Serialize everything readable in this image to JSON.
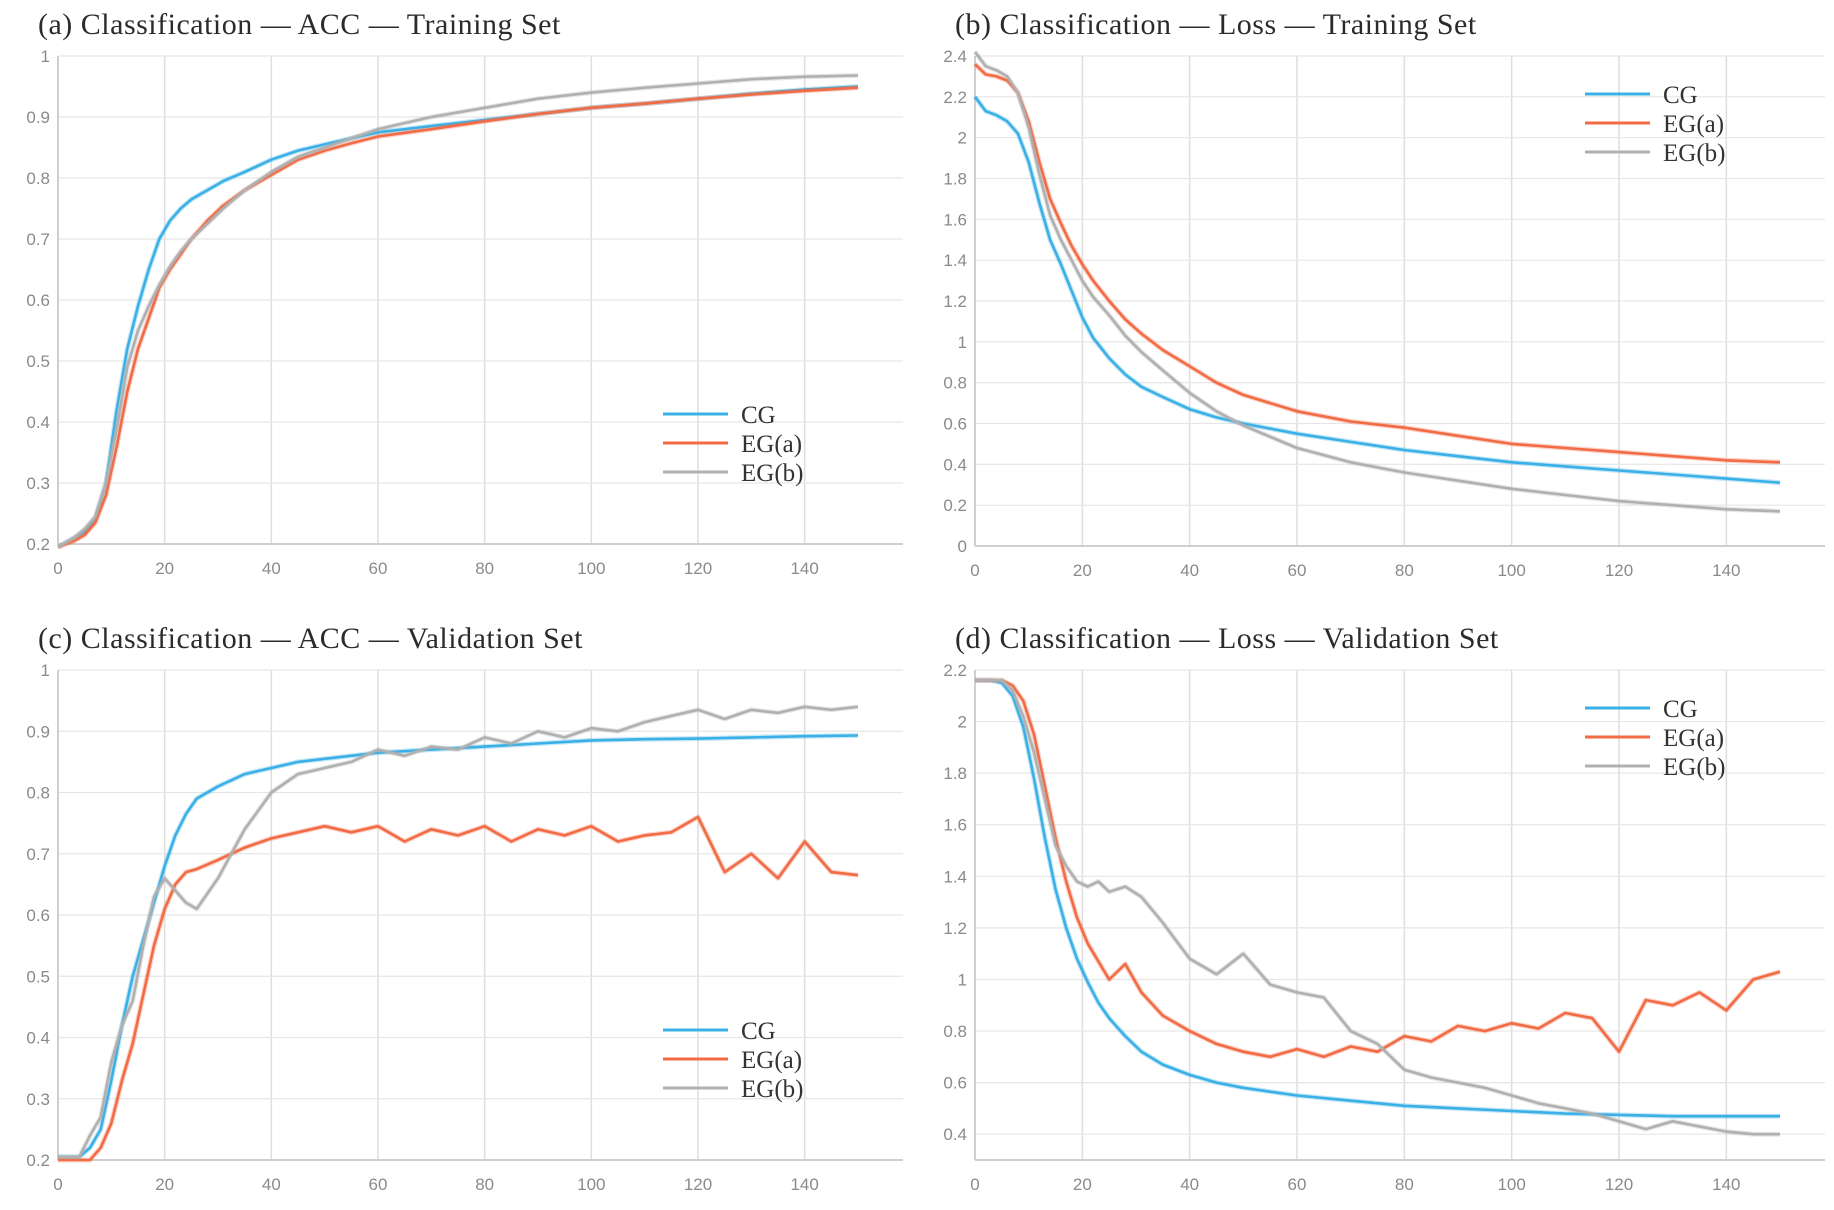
{
  "chart_data": [
    {
      "id": "a",
      "type": "line",
      "title": "(a)  Classification — ACC — Training Set",
      "xlim": [
        0,
        150
      ],
      "ylim": [
        0.2,
        1.0
      ],
      "xticks": [
        0,
        20,
        40,
        60,
        80,
        100,
        120,
        140
      ],
      "yticks": [
        0.2,
        0.3,
        0.4,
        0.5,
        0.6,
        0.7,
        0.8,
        0.9,
        1
      ],
      "grid": true,
      "legend_position": "bottom-right",
      "series": [
        {
          "name": "CG",
          "color": "#3ab0e6",
          "x": [
            0,
            3,
            5,
            7,
            9,
            11,
            13,
            15,
            17,
            19,
            21,
            23,
            25,
            28,
            31,
            35,
            40,
            45,
            50,
            55,
            60,
            70,
            80,
            90,
            100,
            110,
            120,
            130,
            140,
            150
          ],
          "y": [
            0.195,
            0.21,
            0.22,
            0.24,
            0.3,
            0.42,
            0.52,
            0.59,
            0.65,
            0.7,
            0.73,
            0.75,
            0.765,
            0.78,
            0.795,
            0.81,
            0.83,
            0.845,
            0.855,
            0.865,
            0.875,
            0.885,
            0.895,
            0.905,
            0.915,
            0.922,
            0.93,
            0.938,
            0.945,
            0.95
          ]
        },
        {
          "name": "EG(a)",
          "color": "#f26b45",
          "x": [
            0,
            3,
            5,
            7,
            9,
            11,
            13,
            15,
            17,
            19,
            21,
            23,
            25,
            28,
            31,
            35,
            40,
            45,
            50,
            55,
            60,
            70,
            80,
            90,
            100,
            110,
            120,
            130,
            140,
            150
          ],
          "y": [
            0.195,
            0.205,
            0.215,
            0.235,
            0.28,
            0.36,
            0.45,
            0.52,
            0.57,
            0.62,
            0.65,
            0.675,
            0.7,
            0.73,
            0.755,
            0.78,
            0.805,
            0.83,
            0.845,
            0.857,
            0.868,
            0.88,
            0.893,
            0.905,
            0.915,
            0.922,
            0.93,
            0.937,
            0.943,
            0.948
          ]
        },
        {
          "name": "EG(b)",
          "color": "#b0b0b0",
          "x": [
            0,
            3,
            5,
            7,
            9,
            11,
            13,
            15,
            17,
            19,
            21,
            23,
            25,
            28,
            31,
            35,
            40,
            45,
            50,
            55,
            60,
            70,
            80,
            90,
            100,
            110,
            120,
            130,
            140,
            150
          ],
          "y": [
            0.195,
            0.21,
            0.225,
            0.245,
            0.3,
            0.39,
            0.49,
            0.55,
            0.59,
            0.625,
            0.655,
            0.68,
            0.7,
            0.725,
            0.75,
            0.78,
            0.81,
            0.835,
            0.85,
            0.865,
            0.88,
            0.9,
            0.915,
            0.93,
            0.94,
            0.948,
            0.955,
            0.962,
            0.966,
            0.968
          ]
        }
      ]
    },
    {
      "id": "b",
      "type": "line",
      "title": "(b)  Classification — Loss — Training Set",
      "xlim": [
        0,
        150
      ],
      "ylim": [
        0,
        2.4
      ],
      "xticks": [
        0,
        20,
        40,
        60,
        80,
        100,
        120,
        140
      ],
      "yticks": [
        0,
        0.2,
        0.4,
        0.6,
        0.8,
        1,
        1.2,
        1.4,
        1.6,
        1.8,
        2,
        2.2,
        2.4
      ],
      "grid": true,
      "legend_position": "top-right",
      "series": [
        {
          "name": "CG",
          "color": "#3ab0e6",
          "x": [
            0,
            2,
            4,
            6,
            8,
            10,
            12,
            14,
            16,
            18,
            20,
            22,
            25,
            28,
            31,
            35,
            40,
            45,
            50,
            60,
            70,
            80,
            90,
            100,
            110,
            120,
            130,
            140,
            150
          ],
          "y": [
            2.2,
            2.13,
            2.11,
            2.08,
            2.02,
            1.88,
            1.68,
            1.5,
            1.38,
            1.25,
            1.12,
            1.02,
            0.92,
            0.84,
            0.78,
            0.73,
            0.67,
            0.63,
            0.6,
            0.55,
            0.51,
            0.47,
            0.44,
            0.41,
            0.39,
            0.37,
            0.35,
            0.33,
            0.31
          ]
        },
        {
          "name": "EG(a)",
          "color": "#f26b45",
          "x": [
            0,
            2,
            4,
            6,
            8,
            10,
            12,
            14,
            16,
            18,
            20,
            22,
            25,
            28,
            31,
            35,
            40,
            45,
            50,
            60,
            70,
            80,
            90,
            100,
            110,
            120,
            130,
            140,
            150
          ],
          "y": [
            2.36,
            2.31,
            2.3,
            2.28,
            2.22,
            2.08,
            1.88,
            1.7,
            1.58,
            1.47,
            1.38,
            1.3,
            1.2,
            1.11,
            1.04,
            0.96,
            0.88,
            0.8,
            0.74,
            0.66,
            0.61,
            0.58,
            0.54,
            0.5,
            0.48,
            0.46,
            0.44,
            0.42,
            0.41
          ]
        },
        {
          "name": "EG(b)",
          "color": "#b0b0b0",
          "x": [
            0,
            2,
            4,
            6,
            8,
            10,
            12,
            14,
            16,
            18,
            20,
            22,
            25,
            28,
            31,
            35,
            40,
            45,
            50,
            60,
            70,
            80,
            90,
            100,
            110,
            120,
            130,
            140,
            150
          ],
          "y": [
            2.42,
            2.35,
            2.33,
            2.3,
            2.22,
            2.05,
            1.82,
            1.62,
            1.5,
            1.4,
            1.3,
            1.22,
            1.13,
            1.03,
            0.95,
            0.86,
            0.75,
            0.66,
            0.59,
            0.48,
            0.41,
            0.36,
            0.32,
            0.28,
            0.25,
            0.22,
            0.2,
            0.18,
            0.17
          ]
        }
      ]
    },
    {
      "id": "c",
      "type": "line",
      "title": "(c)  Classification — ACC — Validation Set",
      "xlim": [
        0,
        150
      ],
      "ylim": [
        0.2,
        1.0
      ],
      "xticks": [
        0,
        20,
        40,
        60,
        80,
        100,
        120,
        140
      ],
      "yticks": [
        0.2,
        0.3,
        0.4,
        0.5,
        0.6,
        0.7,
        0.8,
        0.9,
        1
      ],
      "grid": true,
      "legend_position": "bottom-right",
      "series": [
        {
          "name": "CG",
          "color": "#3ab0e6",
          "x": [
            0,
            4,
            6,
            8,
            10,
            12,
            14,
            16,
            18,
            20,
            22,
            24,
            26,
            30,
            35,
            40,
            45,
            50,
            60,
            70,
            80,
            90,
            100,
            110,
            120,
            130,
            140,
            150
          ],
          "y": [
            0.205,
            0.205,
            0.22,
            0.25,
            0.33,
            0.42,
            0.5,
            0.56,
            0.62,
            0.68,
            0.73,
            0.765,
            0.79,
            0.81,
            0.83,
            0.84,
            0.85,
            0.855,
            0.865,
            0.87,
            0.875,
            0.88,
            0.885,
            0.887,
            0.888,
            0.89,
            0.892,
            0.893
          ]
        },
        {
          "name": "EG(a)",
          "color": "#f26b45",
          "x": [
            0,
            4,
            6,
            8,
            10,
            12,
            14,
            16,
            18,
            20,
            22,
            24,
            26,
            30,
            35,
            40,
            45,
            50,
            55,
            60,
            65,
            70,
            75,
            80,
            85,
            90,
            95,
            100,
            105,
            110,
            115,
            120,
            125,
            130,
            135,
            140,
            145,
            150
          ],
          "y": [
            0.2,
            0.2,
            0.2,
            0.22,
            0.26,
            0.33,
            0.39,
            0.47,
            0.55,
            0.61,
            0.65,
            0.67,
            0.675,
            0.69,
            0.71,
            0.725,
            0.735,
            0.745,
            0.735,
            0.745,
            0.72,
            0.74,
            0.73,
            0.745,
            0.72,
            0.74,
            0.73,
            0.745,
            0.72,
            0.73,
            0.735,
            0.76,
            0.67,
            0.7,
            0.66,
            0.72,
            0.67,
            0.665
          ]
        },
        {
          "name": "EG(b)",
          "color": "#b0b0b0",
          "x": [
            0,
            4,
            6,
            8,
            10,
            12,
            14,
            16,
            18,
            20,
            22,
            24,
            26,
            30,
            35,
            40,
            45,
            50,
            55,
            60,
            65,
            70,
            75,
            80,
            85,
            90,
            95,
            100,
            105,
            110,
            115,
            120,
            125,
            130,
            135,
            140,
            145,
            150
          ],
          "y": [
            0.205,
            0.205,
            0.24,
            0.27,
            0.36,
            0.42,
            0.46,
            0.55,
            0.63,
            0.66,
            0.64,
            0.62,
            0.61,
            0.66,
            0.74,
            0.8,
            0.83,
            0.84,
            0.85,
            0.87,
            0.86,
            0.875,
            0.87,
            0.89,
            0.88,
            0.9,
            0.89,
            0.905,
            0.9,
            0.915,
            0.925,
            0.935,
            0.92,
            0.935,
            0.93,
            0.94,
            0.935,
            0.94
          ]
        }
      ]
    },
    {
      "id": "d",
      "type": "line",
      "title": "(d)  Classification — Loss — Validation Set",
      "xlim": [
        0,
        150
      ],
      "ylim": [
        0.3,
        2.2
      ],
      "xticks": [
        0,
        20,
        40,
        60,
        80,
        100,
        120,
        140
      ],
      "yticks": [
        0.4,
        0.6,
        0.8,
        1,
        1.2,
        1.4,
        1.6,
        1.8,
        2,
        2.2
      ],
      "grid": true,
      "legend_position": "top-right",
      "series": [
        {
          "name": "CG",
          "color": "#3ab0e6",
          "x": [
            0,
            3,
            5,
            7,
            9,
            11,
            13,
            15,
            17,
            19,
            21,
            23,
            25,
            28,
            31,
            35,
            40,
            45,
            50,
            60,
            70,
            80,
            90,
            100,
            110,
            120,
            130,
            140,
            150
          ],
          "y": [
            2.16,
            2.16,
            2.15,
            2.1,
            1.98,
            1.78,
            1.55,
            1.35,
            1.2,
            1.08,
            0.99,
            0.91,
            0.85,
            0.78,
            0.72,
            0.67,
            0.63,
            0.6,
            0.58,
            0.55,
            0.53,
            0.51,
            0.5,
            0.49,
            0.48,
            0.475,
            0.47,
            0.47,
            0.47
          ]
        },
        {
          "name": "EG(a)",
          "color": "#f26b45",
          "x": [
            0,
            3,
            5,
            7,
            9,
            11,
            13,
            15,
            17,
            19,
            21,
            23,
            25,
            28,
            31,
            35,
            40,
            45,
            50,
            55,
            60,
            65,
            70,
            75,
            80,
            85,
            90,
            95,
            100,
            105,
            110,
            115,
            120,
            125,
            130,
            135,
            140,
            145,
            150
          ],
          "y": [
            2.16,
            2.16,
            2.16,
            2.14,
            2.08,
            1.95,
            1.75,
            1.55,
            1.38,
            1.24,
            1.14,
            1.07,
            1.0,
            1.06,
            0.95,
            0.86,
            0.8,
            0.75,
            0.72,
            0.7,
            0.73,
            0.7,
            0.74,
            0.72,
            0.78,
            0.76,
            0.82,
            0.8,
            0.83,
            0.81,
            0.87,
            0.85,
            0.72,
            0.92,
            0.9,
            0.95,
            0.88,
            1.0,
            1.03
          ]
        },
        {
          "name": "EG(b)",
          "color": "#b0b0b0",
          "x": [
            0,
            3,
            5,
            7,
            9,
            11,
            13,
            15,
            17,
            19,
            21,
            23,
            25,
            28,
            31,
            35,
            40,
            45,
            50,
            55,
            60,
            65,
            70,
            75,
            80,
            85,
            90,
            95,
            100,
            105,
            110,
            115,
            120,
            125,
            130,
            135,
            140,
            145,
            150
          ],
          "y": [
            2.16,
            2.16,
            2.16,
            2.12,
            2.02,
            1.88,
            1.7,
            1.52,
            1.44,
            1.38,
            1.36,
            1.38,
            1.34,
            1.36,
            1.32,
            1.22,
            1.08,
            1.02,
            1.1,
            0.98,
            0.95,
            0.93,
            0.8,
            0.75,
            0.65,
            0.62,
            0.6,
            0.58,
            0.55,
            0.52,
            0.5,
            0.48,
            0.45,
            0.42,
            0.45,
            0.43,
            0.41,
            0.4,
            0.4
          ]
        }
      ]
    }
  ]
}
